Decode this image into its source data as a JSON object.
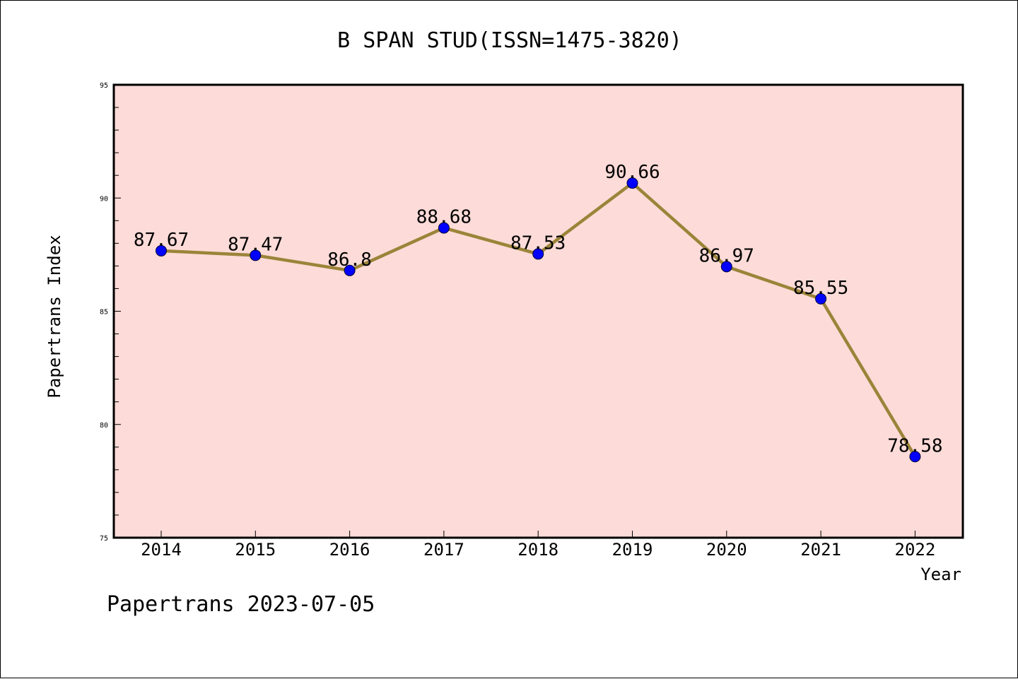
{
  "chart_data": {
    "type": "line",
    "title": "B SPAN STUD(ISSN=1475-3820)",
    "xlabel": "Year",
    "ylabel": "Papertrans Index",
    "categories": [
      "2014",
      "2015",
      "2016",
      "2017",
      "2018",
      "2019",
      "2020",
      "2021",
      "2022"
    ],
    "values": [
      87.67,
      87.47,
      86.8,
      88.68,
      87.53,
      90.66,
      86.97,
      85.55,
      78.58
    ],
    "value_labels": [
      "87.67",
      "87.47",
      "86.8",
      "88.68",
      "87.53",
      "90.66",
      "86.97",
      "85.55",
      "78.58"
    ],
    "ylim": [
      75,
      95
    ],
    "yticks": [
      "75",
      "80",
      "85",
      "90",
      "95"
    ],
    "grid": false,
    "legend": "none",
    "colors": {
      "plot_background": "#fddbd8",
      "line": "#9b8439",
      "marker": "#0000ff"
    }
  },
  "footer": "Papertrans 2023-07-05"
}
